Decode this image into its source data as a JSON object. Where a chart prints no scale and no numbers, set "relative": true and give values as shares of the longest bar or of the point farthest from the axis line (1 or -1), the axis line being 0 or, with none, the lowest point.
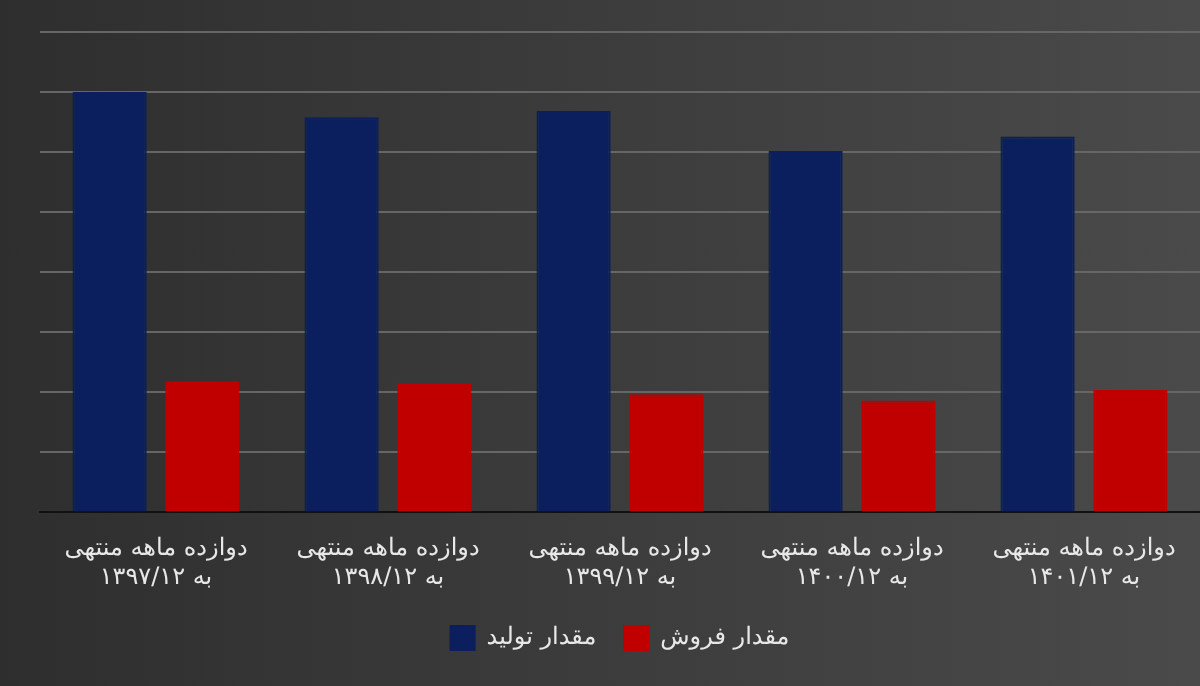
{
  "chart_data": {
    "type": "bar",
    "relative": true,
    "grid": "y",
    "legend": "bottom",
    "categories": [
      "دوازده ماهه منتهی\nبه ۱۳۹۷/۱۲",
      "دوازده ماهه منتهی\nبه ۱۳۹۸/۱۲",
      "دوازده ماهه منتهی\nبه ۱۳۹۹/۱۲",
      "دوازده ماهه منتهی\nبه ۱۴۰۰/۱۲",
      "دوازده ماهه منتهی\nبه ۱۴۰۱/۱۲"
    ],
    "series": [
      {
        "name": "مقدار تولید",
        "color": "#0b1f5e",
        "values": [
          1,
          0.94,
          0.955,
          0.86,
          0.894
        ]
      },
      {
        "name": "مقدار فروش",
        "color": "#c00000",
        "values": [
          0.312,
          0.307,
          0.281,
          0.266,
          0.291
        ]
      }
    ]
  }
}
